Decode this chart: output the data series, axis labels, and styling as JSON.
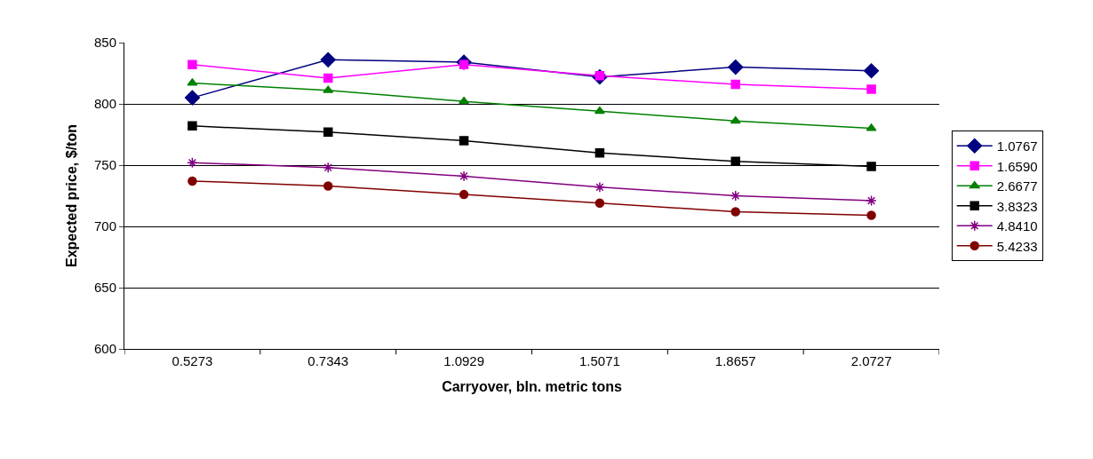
{
  "chart_data": {
    "type": "line",
    "xlabel": "Carryover, bln. metric tons",
    "ylabel": "Expected price, $/ton",
    "categories": [
      "0.5273",
      "0.7343",
      "1.0929",
      "1.5071",
      "1.8657",
      "2.0727"
    ],
    "series": [
      {
        "name": "1.0767",
        "color": "#000080",
        "marker": "diamond",
        "values": [
          805,
          836,
          834,
          822,
          830,
          827
        ]
      },
      {
        "name": "1.6590",
        "color": "#ff00ff",
        "marker": "square",
        "values": [
          832,
          821,
          832,
          823,
          816,
          812
        ]
      },
      {
        "name": "2.6677",
        "color": "#008000",
        "marker": "triangle",
        "values": [
          817,
          811,
          802,
          794,
          786,
          780
        ]
      },
      {
        "name": "3.8323",
        "color": "#000000",
        "marker": "square",
        "values": [
          782,
          777,
          770,
          760,
          753,
          749
        ]
      },
      {
        "name": "4.8410",
        "color": "#800080",
        "marker": "cross",
        "values": [
          752,
          748,
          741,
          732,
          725,
          721
        ]
      },
      {
        "name": "5.4233",
        "color": "#800000",
        "marker": "circle",
        "values": [
          737,
          733,
          726,
          719,
          712,
          709
        ]
      }
    ],
    "ylim": [
      600,
      850
    ],
    "yticks": [
      600,
      650,
      700,
      750,
      800,
      850
    ],
    "grid": "y",
    "legend": "right",
    "line_style": "solid"
  }
}
